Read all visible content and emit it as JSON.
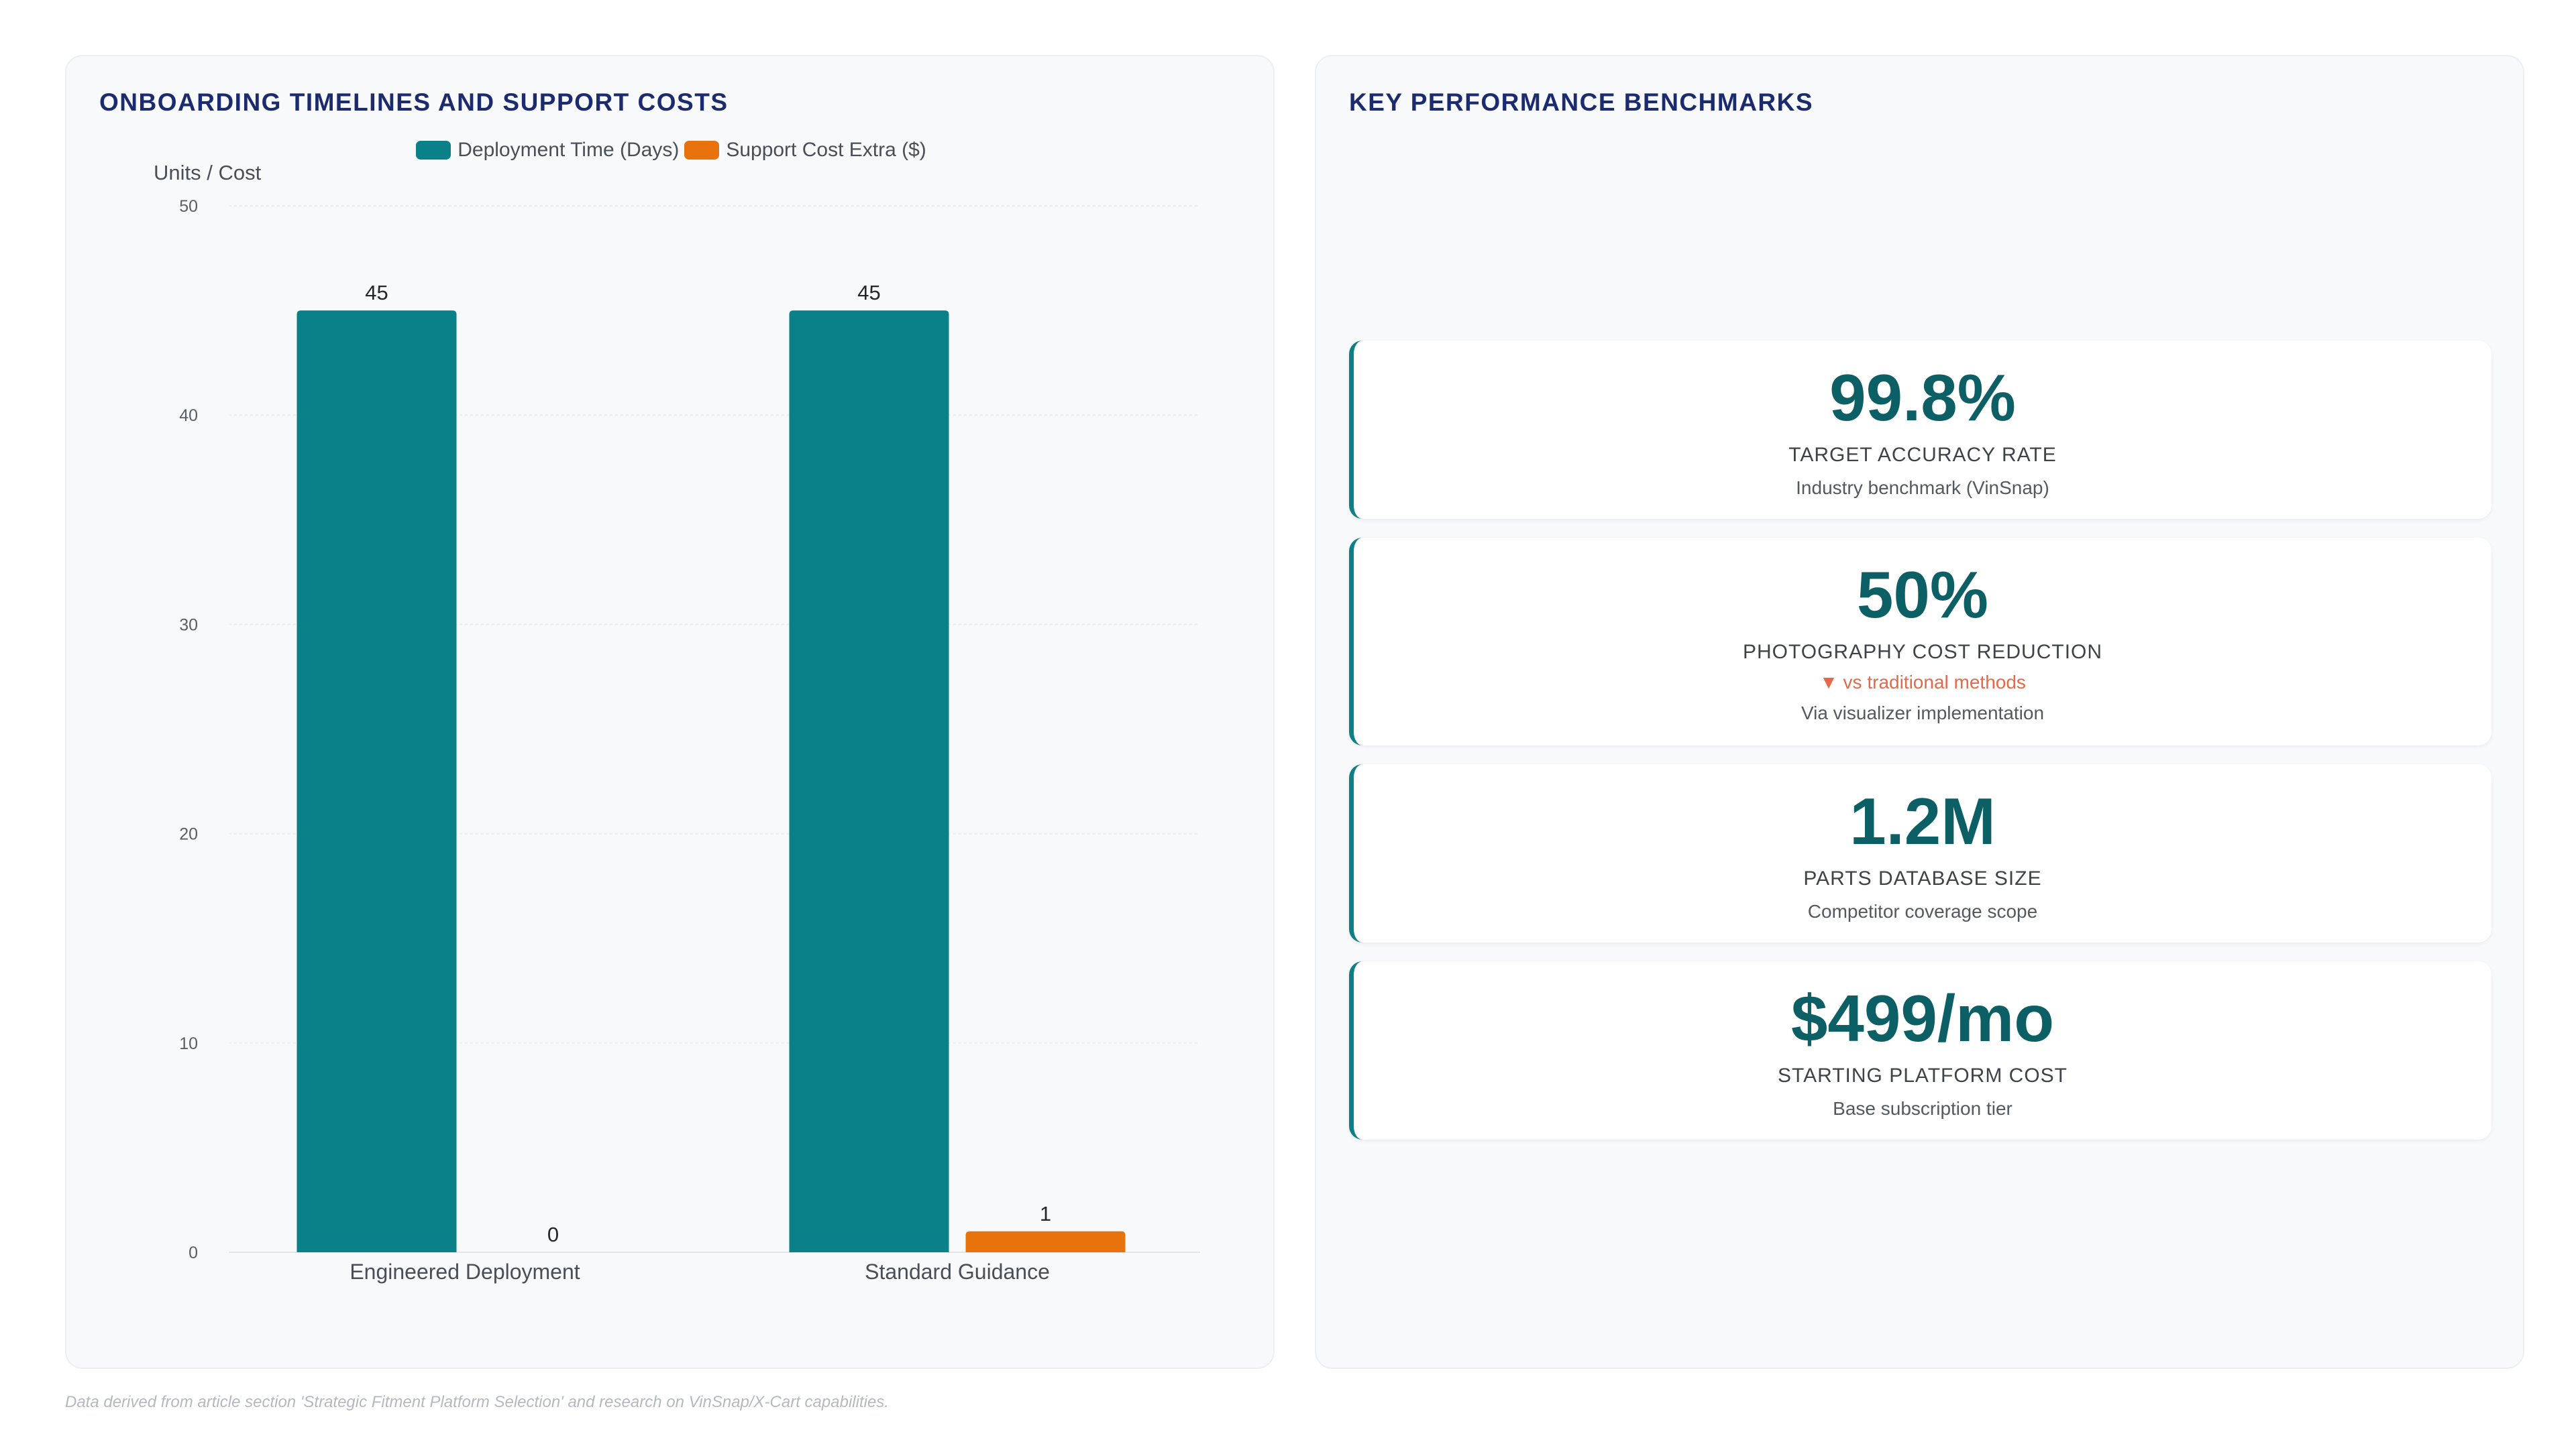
{
  "left_panel": {
    "title": "ONBOARDING TIMELINES AND SUPPORT COSTS"
  },
  "right_panel": {
    "title": "KEY PERFORMANCE BENCHMARKS",
    "kpis": [
      {
        "value": "99.8%",
        "label": "TARGET ACCURACY RATE",
        "sub": "Industry benchmark (VinSnap)"
      },
      {
        "value": "50%",
        "label": "PHOTOGRAPHY COST REDUCTION",
        "delta": "▼ vs traditional methods",
        "sub": "Via visualizer implementation"
      },
      {
        "value": "1.2M",
        "label": "PARTS DATABASE SIZE",
        "sub": "Competitor coverage scope"
      },
      {
        "value": "$499/mo",
        "label": "STARTING PLATFORM COST",
        "sub": "Base subscription tier"
      }
    ]
  },
  "footer": "Data derived from article section 'Strategic Fitment Platform Selection' and research on VinSnap/X-Cart capabilities.",
  "colors": {
    "deployment": "#0a8088",
    "support": "#e8720c",
    "title": "#1c2b6e",
    "kpi_value": "#0d5f66"
  },
  "chart_data": {
    "type": "bar",
    "categories": [
      "Engineered Deployment",
      "Standard Guidance"
    ],
    "series": [
      {
        "name": "Deployment Time (Days)",
        "values": [
          45,
          45
        ]
      },
      {
        "name": "Support Cost Extra ($)",
        "values": [
          0,
          1
        ]
      }
    ],
    "ylabel": "Units / Cost",
    "ylim": [
      0,
      50
    ],
    "yticks": [
      0,
      10,
      20,
      30,
      40,
      50
    ],
    "grid": true,
    "legend": "top-center"
  }
}
